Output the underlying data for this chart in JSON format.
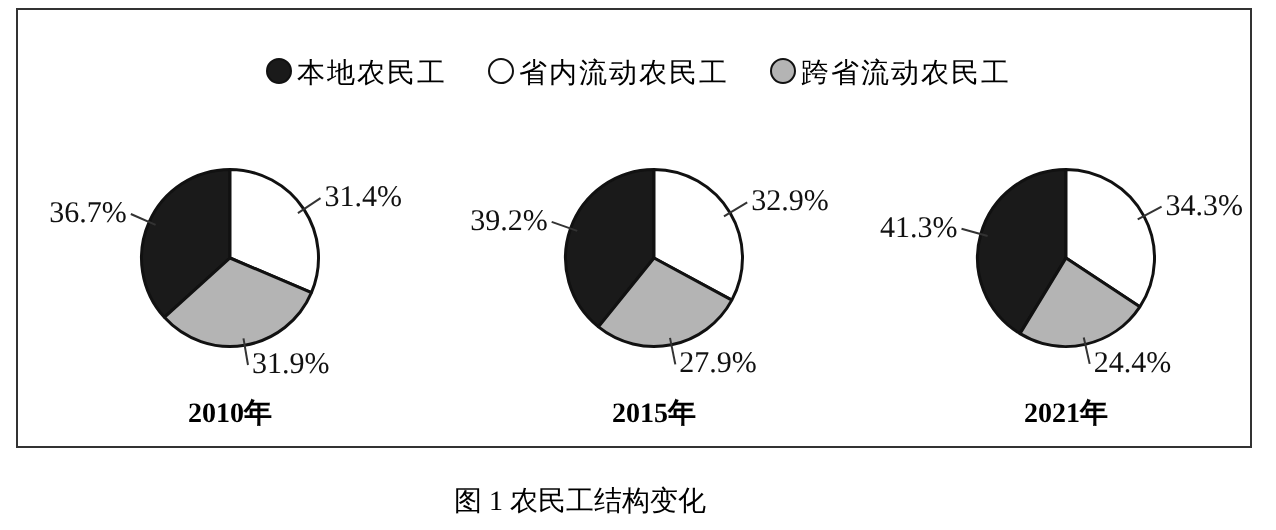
{
  "chart_data": [
    {
      "type": "pie",
      "xlabel": "2010年",
      "categories": [
        "本地农民工",
        "省内流动农民工",
        "跨省流动农民工"
      ],
      "values": [
        36.7,
        31.4,
        31.9
      ],
      "value_labels": [
        "36.7%",
        "31.4%",
        "31.9%"
      ],
      "colors": [
        "#1a1a1a",
        "#ffffff",
        "#b4b4b4"
      ],
      "legend": "top",
      "annotations": [
        "图 1 农民工结构变化"
      ]
    },
    {
      "type": "pie",
      "xlabel": "2015年",
      "categories": [
        null,
        null,
        null
      ],
      "values": [
        39.2,
        32.9,
        27.9
      ],
      "value_labels": [
        "39.2%",
        "32.9%",
        "27.9%"
      ],
      "colors": [
        "#1a1a1a",
        "#ffffff",
        "#b4b4b4"
      ]
    },
    {
      "type": "pie",
      "xlabel": "2021年",
      "categories": [
        null,
        null,
        null
      ],
      "values": [
        41.3,
        34.3,
        24.4
      ],
      "value_labels": [
        "41.3%",
        "34.3%",
        "24.4%"
      ],
      "colors": [
        "#1a1a1a",
        "#ffffff",
        "#b4b4b4"
      ]
    }
  ]
}
